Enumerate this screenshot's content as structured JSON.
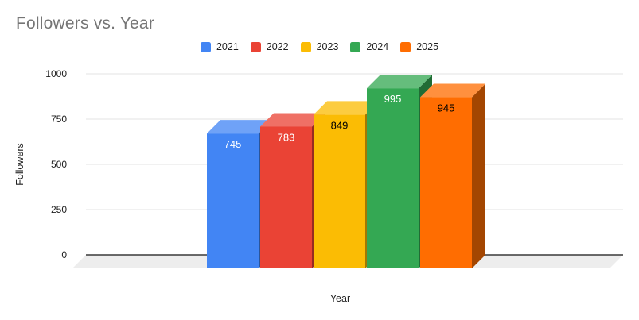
{
  "chart_data": {
    "type": "bar",
    "style": "3d-column",
    "title": "Followers vs. Year",
    "xlabel": "Year",
    "ylabel": "Followers",
    "categories": [
      "2021",
      "2022",
      "2023",
      "2024",
      "2025"
    ],
    "values": [
      745,
      783,
      849,
      995,
      945
    ],
    "ylim": [
      0,
      1000
    ],
    "yticks": [
      0,
      250,
      500,
      750,
      1000
    ],
    "grid": true,
    "legend_position": "top",
    "colors": [
      "#4285F4",
      "#EA4335",
      "#FBBC04",
      "#34A853",
      "#FF6D01"
    ],
    "data_label_colors": [
      "#ffffff",
      "#ffffff",
      "#000000",
      "#ffffff",
      "#000000"
    ],
    "title_color": "#757575",
    "gridline_color": "#e3e3e3",
    "baseline_color": "#3a3a3a",
    "floor_color": "#ededed",
    "background": "#ffffff"
  }
}
